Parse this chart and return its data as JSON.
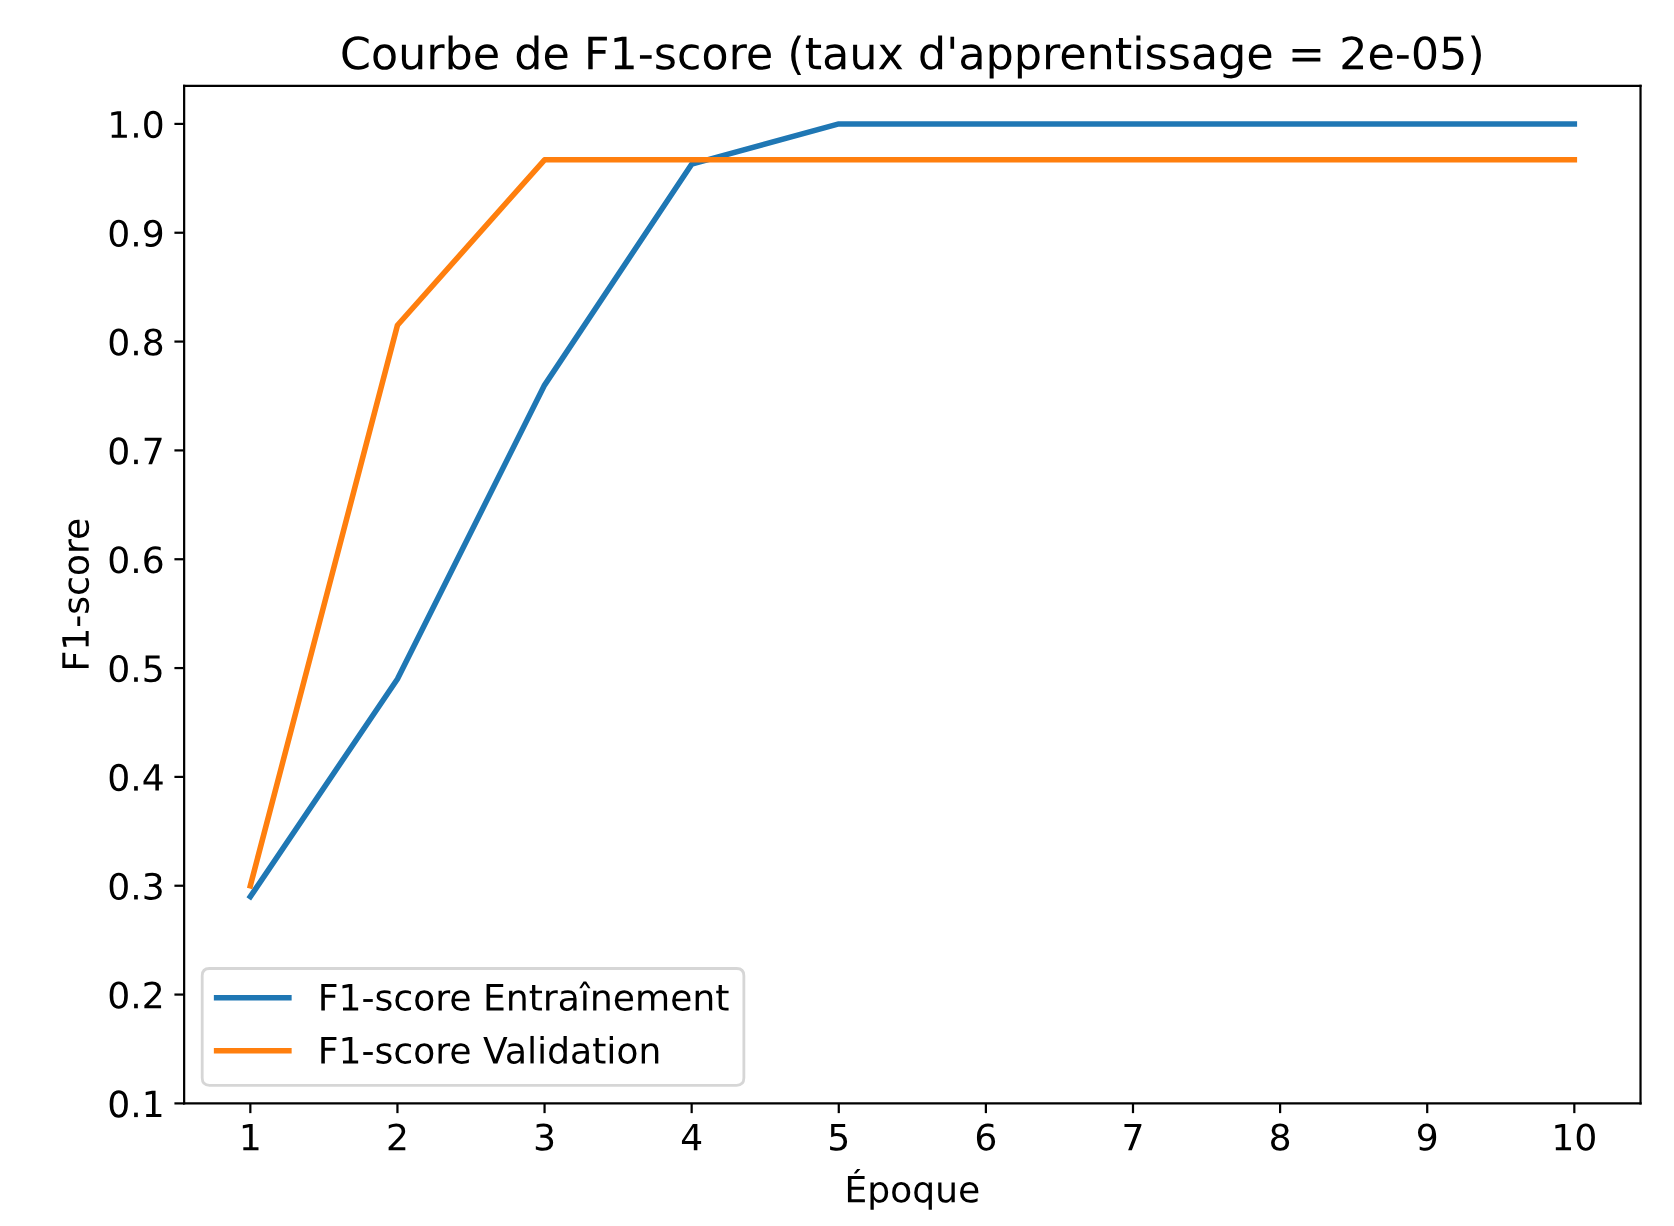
{
  "chart_data": {
    "type": "line",
    "title": "Courbe de F1-score (taux d'apprentissage = 2e-05)",
    "xlabel": "Époque",
    "ylabel": "F1-score",
    "x": [
      1,
      2,
      3,
      4,
      5,
      6,
      7,
      8,
      9,
      10
    ],
    "series": [
      {
        "name": "F1-score Entraînement",
        "color": "#1f77b4",
        "values": [
          0.29,
          0.49,
          0.76,
          0.963,
          1.0,
          1.0,
          1.0,
          1.0,
          1.0,
          1.0
        ]
      },
      {
        "name": "F1-score Validation",
        "color": "#ff7f0e",
        "values": [
          0.3,
          0.815,
          0.967,
          0.967,
          0.967,
          0.967,
          0.967,
          0.967,
          0.967,
          0.967
        ]
      }
    ],
    "xlim": [
      0.55,
      10.45
    ],
    "xticks": [
      1,
      2,
      3,
      4,
      5,
      6,
      7,
      8,
      9,
      10
    ],
    "ylim": [
      0.1,
      1.035
    ],
    "yticks": [
      0.1,
      0.2,
      0.3,
      0.4,
      0.5,
      0.6,
      0.7,
      0.8,
      0.9,
      {
        "value": 1.0,
        "label": "1.0"
      }
    ],
    "grid": false,
    "legend": "bottom left",
    "marker": "none",
    "line_style": "solid"
  }
}
